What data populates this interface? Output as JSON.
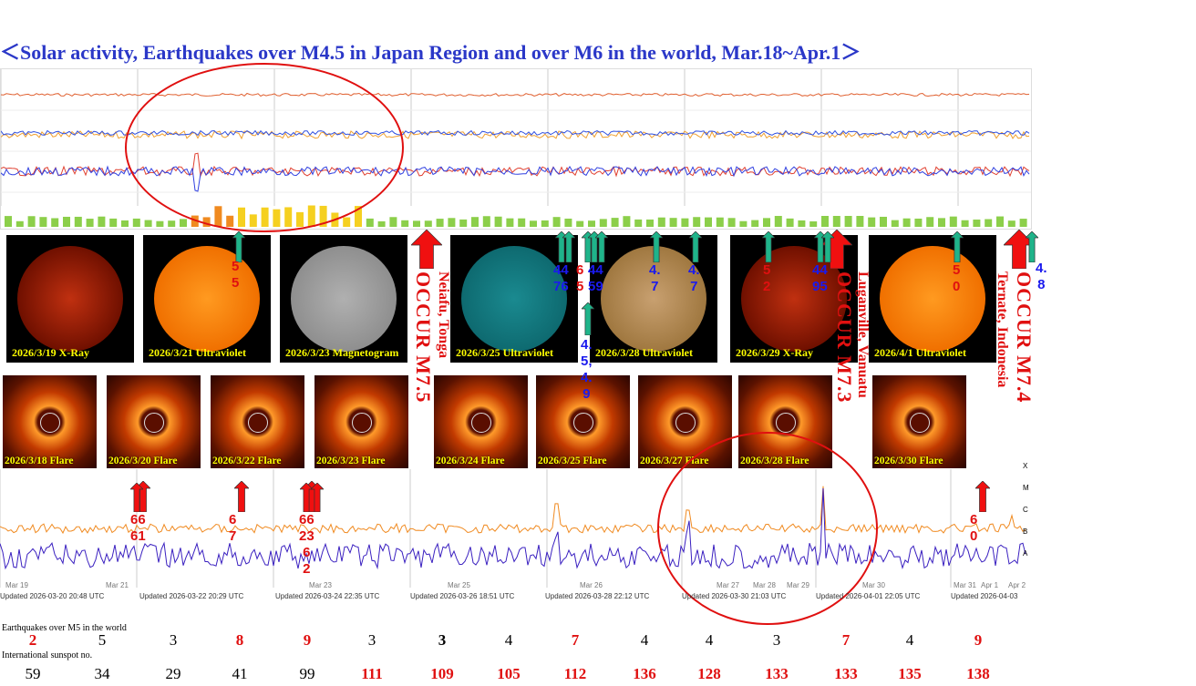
{
  "title": "＜Solar activity, Earthquakes over M4.5 in Japan Region and over M6 in the world, Mar.18~Apr.1＞",
  "colors": {
    "title": "#2b38c8",
    "red": "#e01010",
    "blue": "#1a1aee",
    "green_arrow": "#1fb48a",
    "caption": "#ffff00"
  },
  "solar_images": [
    {
      "caption": "2026/3/19 X-Ray",
      "kind": "xray"
    },
    {
      "caption": "2026/3/21 Ultraviolet",
      "kind": "orange"
    },
    {
      "caption": "2026/3/23 Magnetogram",
      "kind": "gray"
    },
    {
      "caption": "2026/3/25 Ultraviolet",
      "kind": "teal"
    },
    {
      "caption": "2026/3/28 Ultraviolet",
      "kind": "tan"
    },
    {
      "caption": "2026/3/29 X-Ray",
      "kind": "xray"
    },
    {
      "caption": "2026/4/1 Ultraviolet",
      "kind": "orange"
    }
  ],
  "flare_images": [
    "2026/3/18 Flare",
    "2026/3/20 Flare",
    "2026/3/22 Flare",
    "2026/3/23 Flare",
    "2026/3/24 Flare",
    "2026/3/25 Flare",
    "2026/3/27 Flare",
    "2026/3/28 Flare",
    "2026/3/30 Flare"
  ],
  "world_events": [
    {
      "place": "Neiafu, Tonga",
      "occur": "OCCUR M7.5"
    },
    {
      "place": "Luganville, Vanuatu",
      "occur": "OCCUR M7.3"
    },
    {
      "place": "Ternate, Indonesia",
      "occur": "OCCUR M7.4"
    }
  ],
  "japan_annotations": [
    {
      "text": "5\n5",
      "color": "red"
    },
    {
      "text": "44\n76",
      "color": "blue"
    },
    {
      "text": "6\n5",
      "color": "red"
    },
    {
      "text": "44\n59",
      "color": "blue"
    },
    {
      "text": "4.\n7",
      "color": "blue"
    },
    {
      "text": "4.\n7",
      "color": "blue"
    },
    {
      "text": "5\n2",
      "color": "red"
    },
    {
      "text": "44\n95",
      "color": "blue"
    },
    {
      "text": "5\n0",
      "color": "red"
    },
    {
      "text": "4.\n8",
      "color": "blue"
    },
    {
      "text": "4.\n5,\n4.\n9",
      "color": "blue"
    }
  ],
  "flux_annotations": [
    {
      "text": "66\n61"
    },
    {
      "text": "6\n7"
    },
    {
      "text": "66\n23\n6\n2"
    },
    {
      "text": "6\n0"
    }
  ],
  "xray_ticks": [
    "Mar 19",
    "Mar 21",
    "Mar 23",
    "Mar 25",
    "Mar 26",
    "Mar 27",
    "Mar 28",
    "Mar 29",
    "Mar 30",
    "Mar 31",
    "Apr 1",
    "Apr 2"
  ],
  "xray_classes": [
    "X",
    "M",
    "C",
    "B",
    "A"
  ],
  "updated": [
    "Updated 2026-03-20 20:48 UTC",
    "Updated 2026-03-22 20:29 UTC",
    "Updated 2026-03-24 22:35 UTC",
    "Updated 2026-03-26 18:51 UTC",
    "Updated 2026-03-28 22:12 UTC",
    "Updated 2026-03-30 21:03 UTC",
    "Updated 2026-04-01 22:05 UTC",
    "Updated 2026-04-03"
  ],
  "earthquakes_label": "Earthquakes over M5 in the world",
  "earthquakes": [
    {
      "v": "2",
      "red": true
    },
    {
      "v": "5"
    },
    {
      "v": "3"
    },
    {
      "v": "8",
      "red": true
    },
    {
      "v": "9",
      "red": true
    },
    {
      "v": "3"
    },
    {
      "v": "3",
      "bold": true
    },
    {
      "v": "4"
    },
    {
      "v": "7",
      "red": true
    },
    {
      "v": "4"
    },
    {
      "v": "4"
    },
    {
      "v": "3"
    },
    {
      "v": "7",
      "red": true
    },
    {
      "v": "4"
    },
    {
      "v": "9",
      "red": true
    }
  ],
  "sunspot_label": "International sunspot no.",
  "sunspots": [
    {
      "v": "59"
    },
    {
      "v": "34"
    },
    {
      "v": "29"
    },
    {
      "v": "41"
    },
    {
      "v": "99"
    },
    {
      "v": "111",
      "red": true
    },
    {
      "v": "109",
      "red": true
    },
    {
      "v": "105",
      "red": true
    },
    {
      "v": "112",
      "red": true
    },
    {
      "v": "136",
      "red": true
    },
    {
      "v": "128",
      "red": true
    },
    {
      "v": "133",
      "red": true
    },
    {
      "v": "133",
      "red": true
    },
    {
      "v": "135",
      "red": true
    },
    {
      "v": "138",
      "red": true
    }
  ]
}
